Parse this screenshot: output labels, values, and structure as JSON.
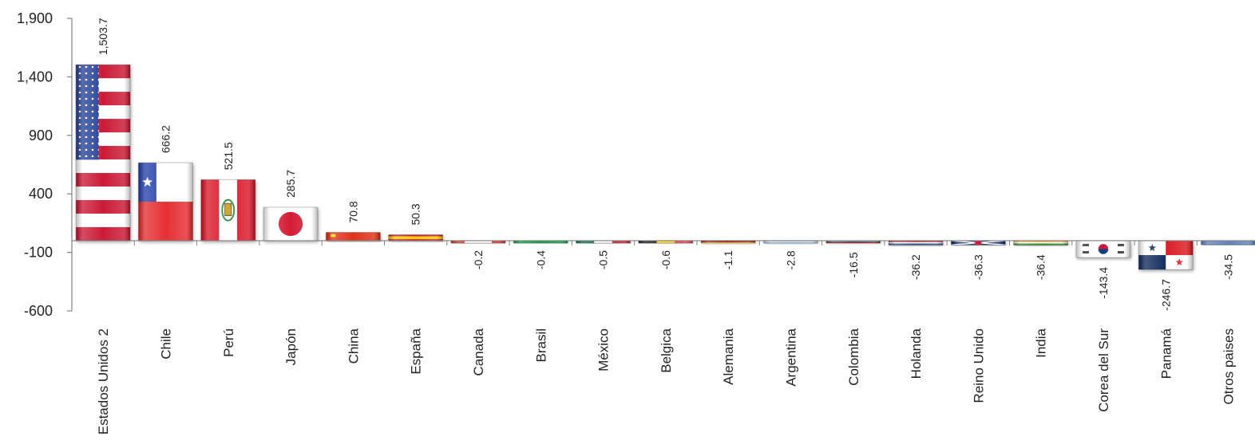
{
  "chart_data": {
    "type": "bar",
    "title": "",
    "xlabel": "",
    "ylabel": "",
    "ylim": [
      -600,
      1900
    ],
    "yticks": [
      -600,
      -100,
      400,
      900,
      1400,
      1900
    ],
    "ytick_labels": [
      "-600",
      "-100",
      "400",
      "900",
      "1,400",
      "1,900"
    ],
    "grid": false,
    "categories": [
      "Estados Unidos 2",
      "Chile",
      "Perú",
      "Japón",
      "China",
      "España",
      "Canada",
      "Brasil",
      "México",
      "Belgica",
      "Alemania",
      "Argentina",
      "Colombia",
      "Holanda",
      "Reino Unido",
      "India",
      "Corea del Sur",
      "Panamá",
      "Otros paises"
    ],
    "values": [
      1503.7,
      666.2,
      521.5,
      285.7,
      70.8,
      50.3,
      -0.2,
      -0.4,
      -0.5,
      -0.6,
      -1.1,
      -2.8,
      -16.5,
      -36.2,
      -36.3,
      -36.4,
      -143.4,
      -246.7,
      -34.5
    ],
    "value_labels": [
      "1,503.7",
      "666.2",
      "521.5",
      "285.7",
      "70.8",
      "50.3",
      "-0.2",
      "-0.4",
      "-0.5",
      "-0.6",
      "-1.1",
      "-2.8",
      "-16.5",
      "-36.2",
      "-36.3",
      "-36.4",
      "-143.4",
      "-246.7",
      "-34.5"
    ],
    "bar_fill": [
      "flag-usa",
      "flag-chile",
      "flag-peru",
      "flag-japan",
      "flag-china",
      "flag-spain",
      "flag-canada",
      "flag-brazil",
      "flag-mexico",
      "flag-belgium",
      "flag-germany",
      "flag-argentina",
      "flag-colombia",
      "flag-netherlands",
      "flag-uk",
      "flag-india",
      "flag-korea",
      "flag-panama",
      "flag-other"
    ],
    "colors": {
      "axis": "#808080",
      "text": "#222222",
      "usa_red": "#c8102e",
      "usa_blue": "#1f3a93",
      "chile_red": "#e4262a",
      "chile_blue": "#1f3ba8",
      "peru_red": "#d91023",
      "japan_red": "#d2112a",
      "china_red": "#de2910",
      "china_yellow": "#ffde00",
      "spain_red": "#c60b1e",
      "spain_yellow": "#ffc400",
      "korea_red": "#c60c30",
      "korea_blue": "#003478",
      "panama_red": "#da121a",
      "panama_blue": "#072357",
      "other_blue": "#5a7fb8"
    }
  }
}
